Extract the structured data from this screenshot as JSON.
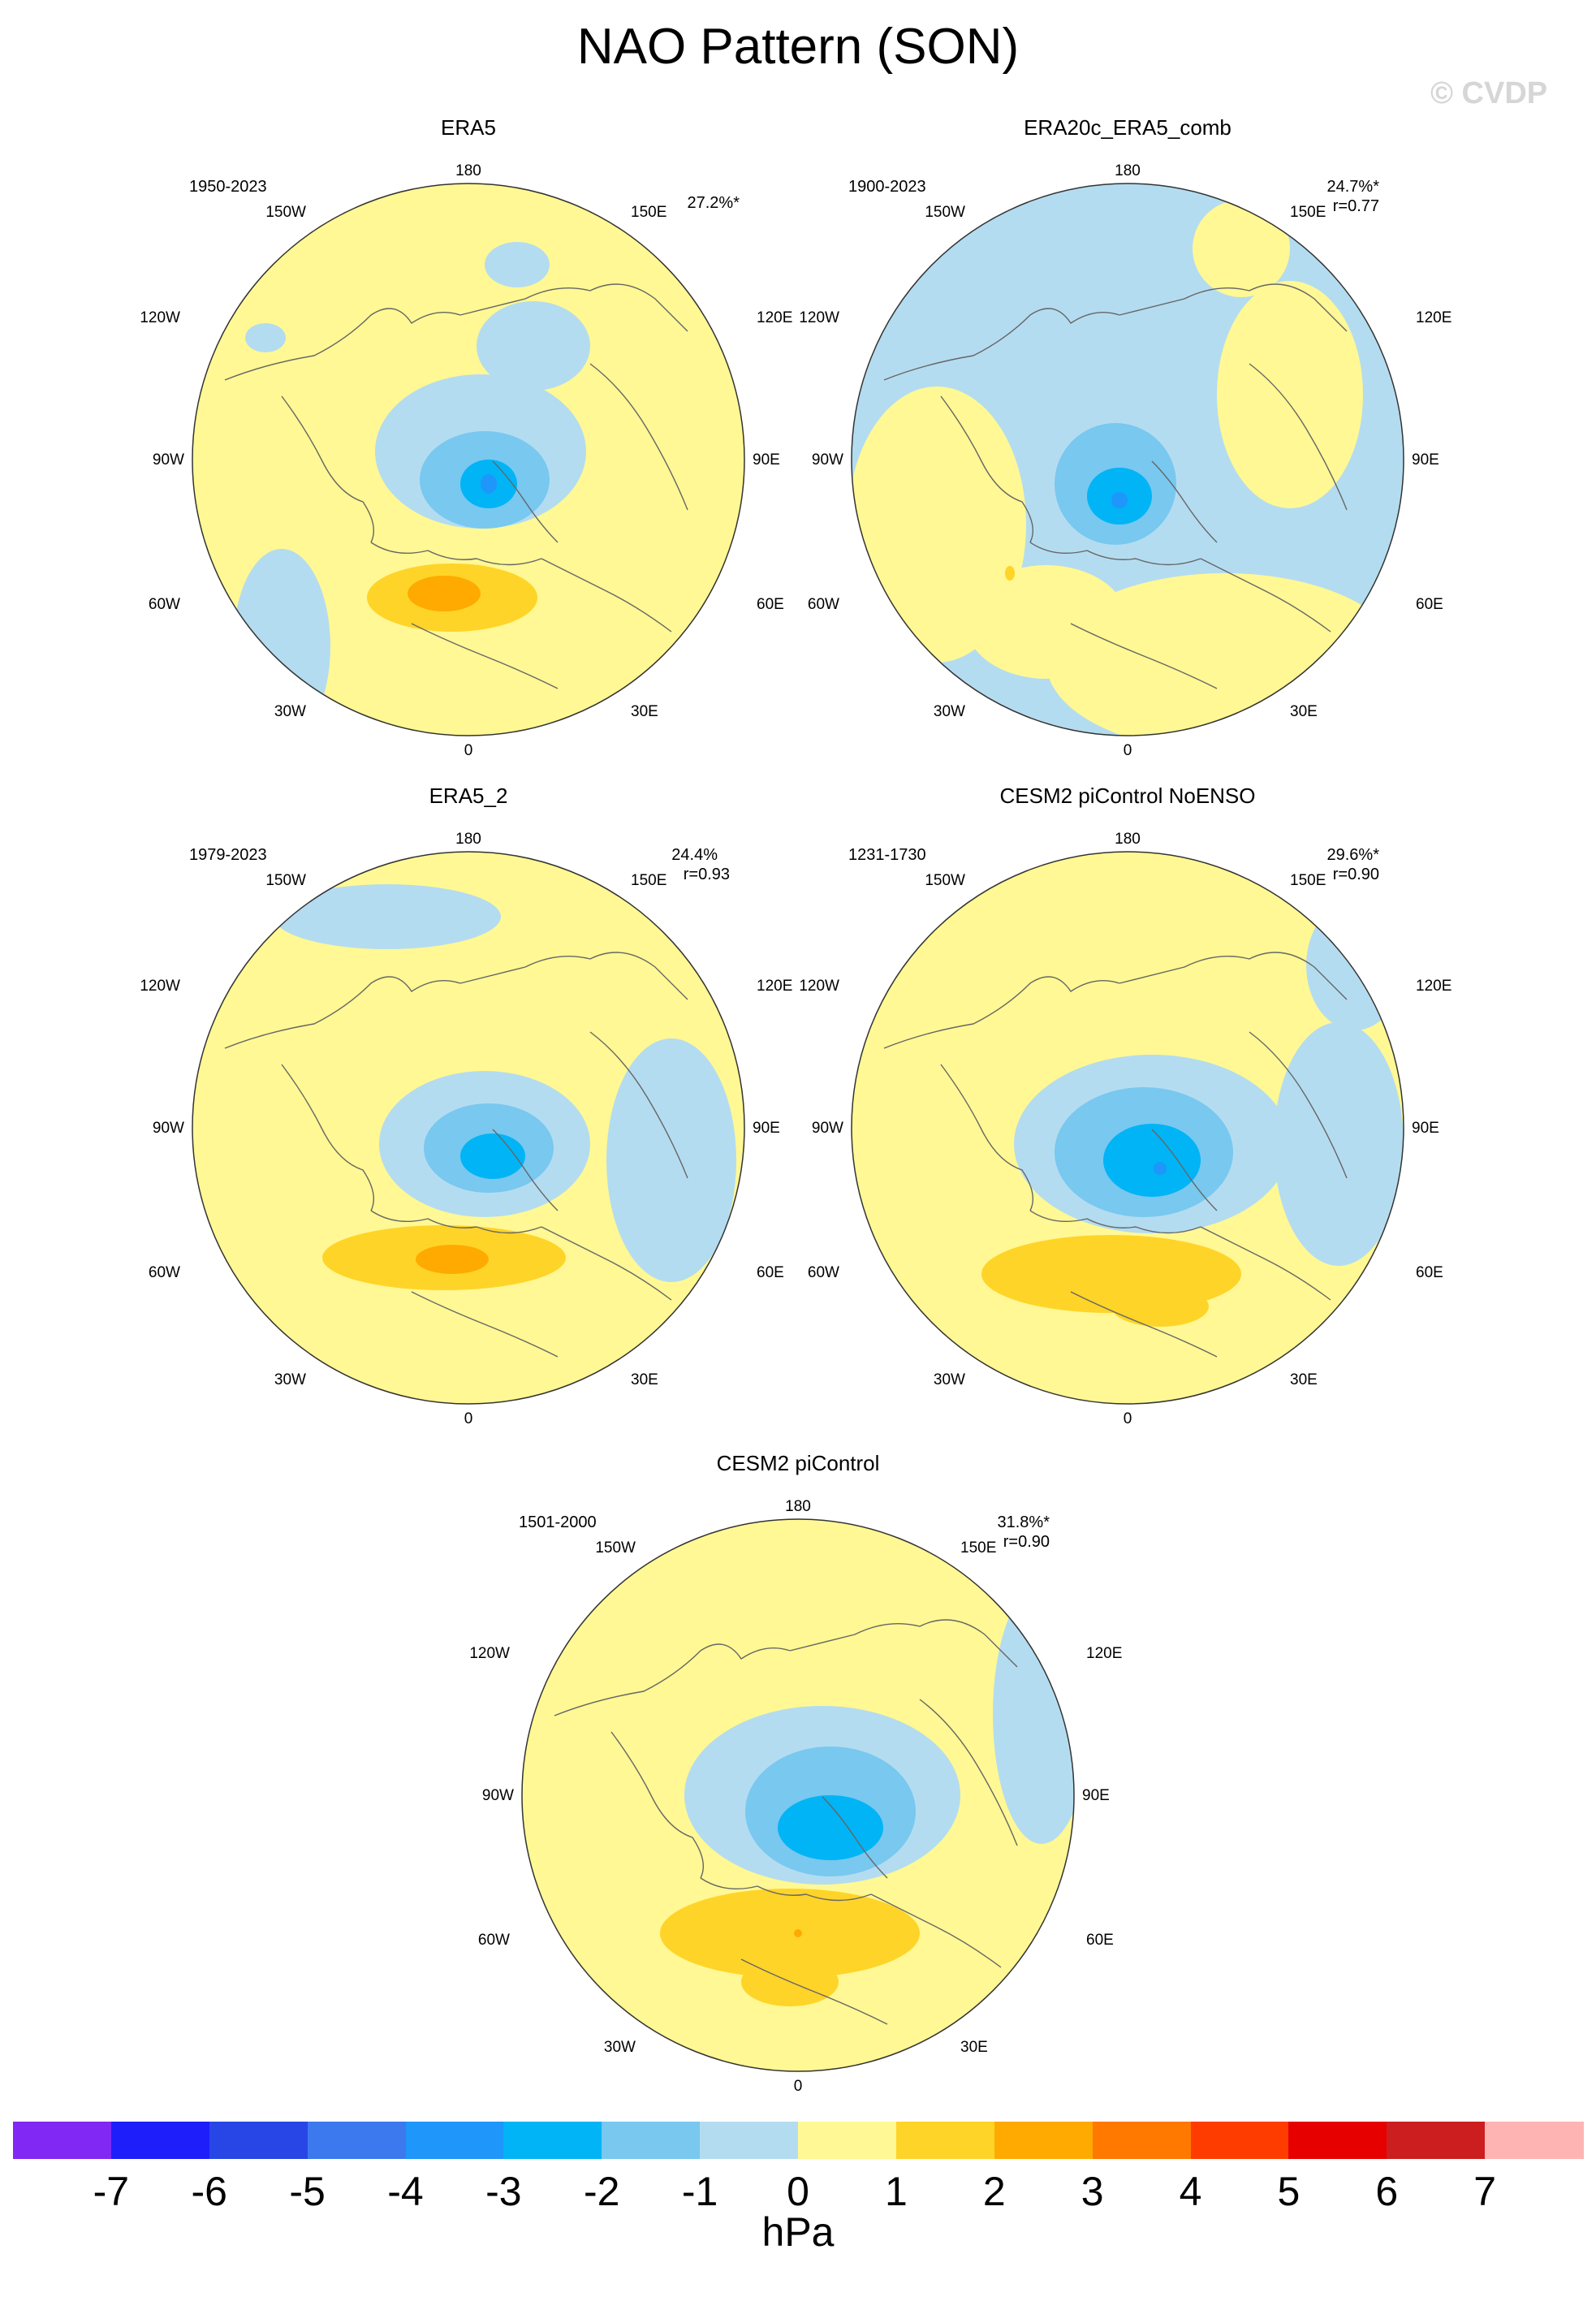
{
  "title": "NAO Pattern (SON)",
  "copyright": "© CVDP",
  "units": "hPa",
  "colors": {
    "outline": "#333333",
    "coast": "#666666",
    "neg1": "#b4dcf0",
    "neg2": "#78c8f0",
    "neg3": "#00b4f5",
    "neg4": "#1e96fa",
    "pos1": "#fff894",
    "pos2": "#ffd428",
    "pos3": "#ffaa00"
  },
  "colorbar": {
    "colors": [
      "#8228f5",
      "#1e1efa",
      "#2846e6",
      "#3c78ee",
      "#1e96fa",
      "#00b4f5",
      "#78c8f0",
      "#b4dcf0",
      "#fff894",
      "#ffd428",
      "#ffaa00",
      "#ff7800",
      "#ff3c00",
      "#e60000",
      "#cc1e1e",
      "#ffb4b4"
    ],
    "labels": [
      "-7",
      "-6",
      "-5",
      "-4",
      "-3",
      "-2",
      "-1",
      "0",
      "1",
      "2",
      "3",
      "4",
      "5",
      "6",
      "7"
    ]
  },
  "lon_labels": {
    "top": "180",
    "bottom": "0",
    "w150": "150W",
    "e150": "150E",
    "w120": "120W",
    "e120": "120E",
    "w90": "90W",
    "e90": "90E",
    "w60": "60W",
    "e60": "60E",
    "w30": "30W",
    "e30": "30E"
  },
  "panels": [
    {
      "name": "ERA5",
      "period": "1950-2023",
      "pct": "27.2%*",
      "corr": ""
    },
    {
      "name": "ERA20c_ERA5_comb",
      "period": "1900-2023",
      "pct": "24.7%*",
      "corr": "r=0.77"
    },
    {
      "name": "ERA5_2",
      "period": "1979-2023",
      "pct": "24.4%",
      "corr": "r=0.93"
    },
    {
      "name": "CESM2 piControl NoENSO",
      "period": "1231-1730",
      "pct": "29.6%*",
      "corr": "r=0.90"
    },
    {
      "name": "CESM2 piControl",
      "period": "1501-2000",
      "pct": "31.8%*",
      "corr": "r=0.90"
    }
  ]
}
